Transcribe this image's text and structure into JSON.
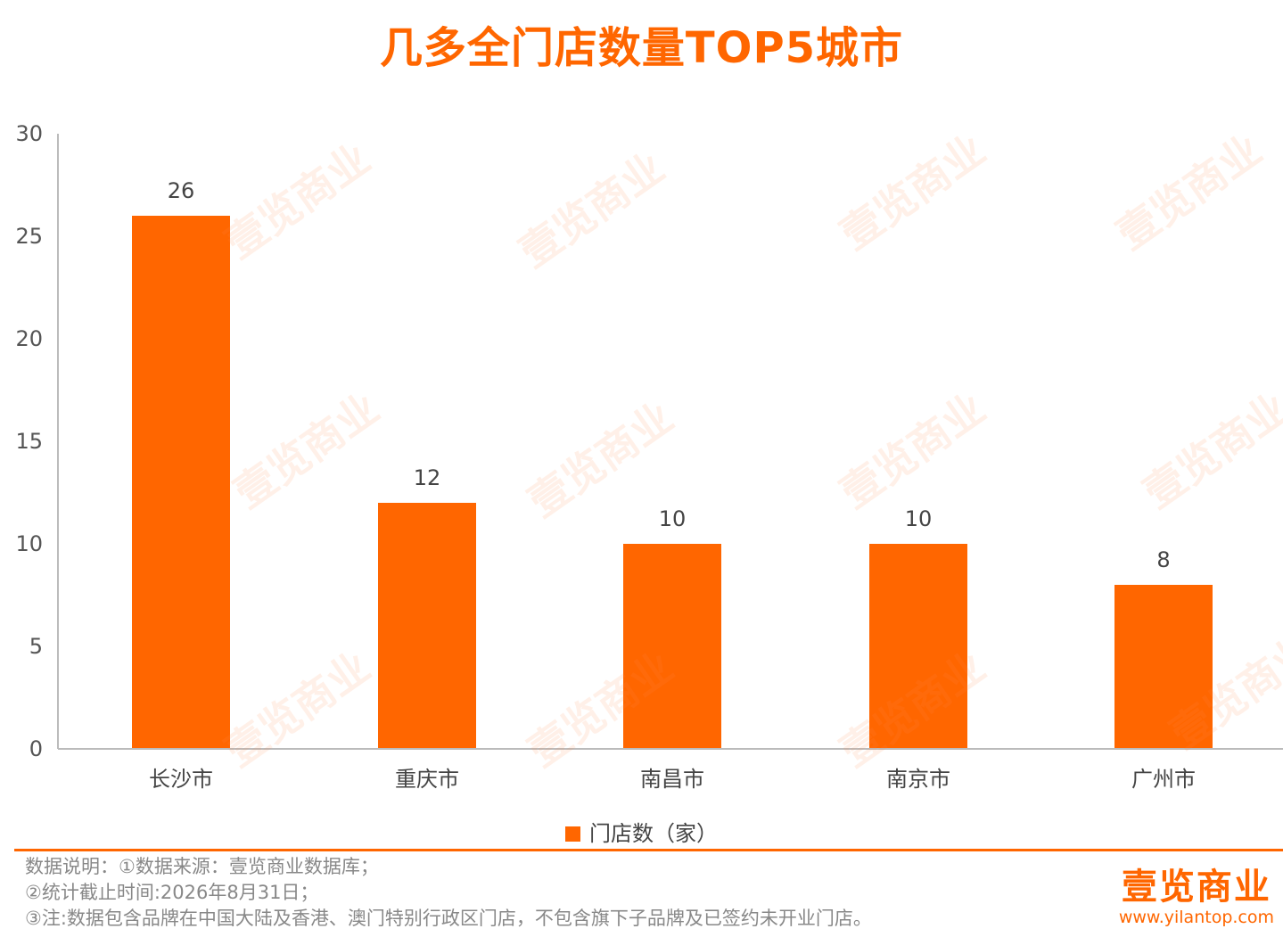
{
  "chart_data": {
    "type": "bar",
    "title": "几多全门店数量TOP5城市",
    "categories": [
      "长沙市",
      "重庆市",
      "南昌市",
      "南京市",
      "广州市"
    ],
    "series": [
      {
        "name": "门店数（家）",
        "values": [
          26,
          12,
          10,
          10,
          8
        ]
      }
    ],
    "ylim": [
      0,
      30
    ],
    "yticks": [
      0,
      5,
      10,
      15,
      20,
      25,
      30
    ],
    "grid": false,
    "legend": "bottom-center",
    "bar_color": "#ff6600"
  },
  "notes": [
    "数据说明：①数据来源：壹览商业数据库；",
    "②统计截止时间:2026年8月31日；",
    "③注:数据包含品牌在中国大陆及香港、澳门特别行政区门店，不包含旗下子品牌及已签约未开业门店。"
  ],
  "brand": {
    "name": "壹览商业",
    "url": "www.yilantop.com"
  },
  "watermark_text": "壹览商业",
  "colors": {
    "accent": "#ff6600",
    "axis": "#bbbbbb"
  }
}
